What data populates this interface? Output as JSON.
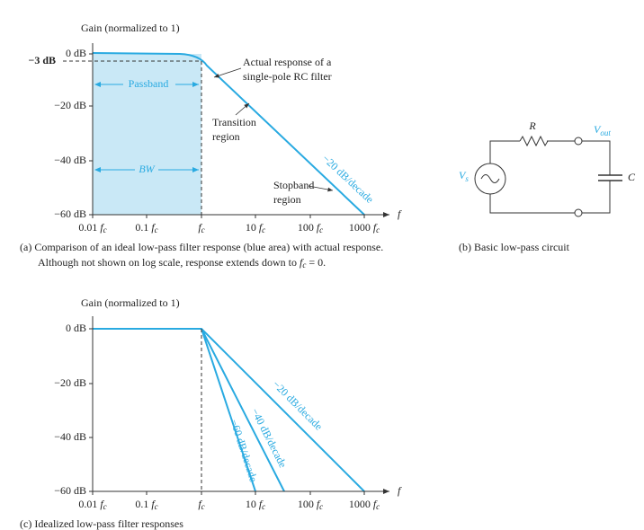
{
  "panel_a": {
    "y_axis_title": "Gain (normalized to 1)",
    "y_ticks": [
      "0 dB",
      "−20 dB",
      "−40 dB",
      "−60 dB"
    ],
    "minus3": "−3 dB",
    "x_ticks": [
      {
        "num": "0.01",
        "var": "f",
        "sub": "c"
      },
      {
        "num": "0.1",
        "var": "f",
        "sub": "c"
      },
      {
        "var": "f",
        "sub": "c"
      },
      {
        "num": "10",
        "var": "f",
        "sub": "c"
      },
      {
        "num": "100",
        "var": "f",
        "sub": "c"
      },
      {
        "num": "1000",
        "var": "f",
        "sub": "c"
      }
    ],
    "x_axis_var": "f",
    "passband": "Passband",
    "bw": "BW",
    "actual": [
      "Actual response of a",
      "single-pole RC filter"
    ],
    "transition": [
      "Transition",
      "region"
    ],
    "stopband": [
      "Stopband",
      "region"
    ],
    "slope": "−20 dB/decade",
    "caption": {
      "line1": "(a) Comparison of an ideal low-pass filter response (blue area) with actual response.",
      "line2": "Although not shown on log scale, response extends down to ",
      "var": "f",
      "sub": "c",
      "tail": " = 0."
    }
  },
  "panel_b": {
    "r": "R",
    "vout": {
      "var": "V",
      "sub": "out"
    },
    "vs": {
      "var": "V",
      "sub": "s"
    },
    "c": "C",
    "caption": "(b) Basic low-pass circuit"
  },
  "panel_c": {
    "y_axis_title": "Gain (normalized to 1)",
    "y_ticks": [
      "0 dB",
      "−20 dB",
      "−40 dB",
      "−60 dB"
    ],
    "x_ticks": [
      {
        "num": "0.01",
        "var": "f",
        "sub": "c"
      },
      {
        "num": "0.1",
        "var": "f",
        "sub": "c"
      },
      {
        "var": "f",
        "sub": "c"
      },
      {
        "num": "10",
        "var": "f",
        "sub": "c"
      },
      {
        "num": "100",
        "var": "f",
        "sub": "c"
      },
      {
        "num": "1000",
        "var": "f",
        "sub": "c"
      }
    ],
    "x_axis_var": "f",
    "slopes": [
      "−20 dB/decade",
      "−40 dB/decade",
      "−60 dB/decade"
    ],
    "caption": "(c) Idealized low-pass filter responses"
  }
}
